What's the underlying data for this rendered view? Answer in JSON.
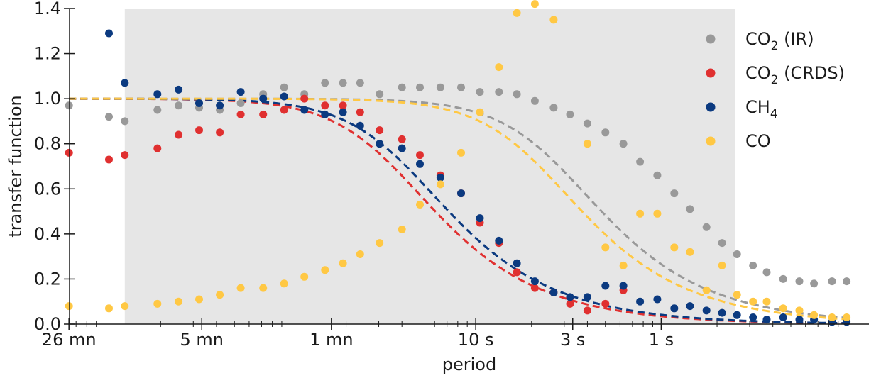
{
  "chart_data": {
    "type": "scatter",
    "xlabel": "period",
    "ylabel": "transfer function",
    "x_scale": "log (frequency)",
    "x_ticks": [
      {
        "label": "26 mn",
        "period_s": 1560
      },
      {
        "label": "5 mn",
        "period_s": 300
      },
      {
        "label": "1 mn",
        "period_s": 60
      },
      {
        "label": "10 s",
        "period_s": 10
      },
      {
        "label": "3 s",
        "period_s": 3
      },
      {
        "label": "1 s",
        "period_s": 1
      }
    ],
    "ylim": [
      0,
      1.4
    ],
    "y_ticks": [
      "0.0",
      "0.2",
      "0.4",
      "0.6",
      "0.8",
      "1.0",
      "1.2",
      "1.4"
    ],
    "shaded_region_period_s": [
      780,
      0.4
    ],
    "legend_position": "top-right",
    "colors": {
      "co2_ir": "#999999",
      "co2_crds": "#e03030",
      "ch4": "#0b3a80",
      "co": "#ffc844",
      "shade": "#e6e6e6"
    },
    "series": [
      {
        "key": "co2_ir",
        "name_main": "CO",
        "name_sub": "2",
        "name_rest": " (IR)",
        "color": "#999999",
        "fit_cutoff_s": 1.65,
        "points": [
          [
            1560,
            0.97
          ],
          [
            950,
            0.92
          ],
          [
            780,
            0.9
          ],
          [
            520,
            0.95
          ],
          [
            400,
            0.97
          ],
          [
            310,
            0.96
          ],
          [
            240,
            0.95
          ],
          [
            185,
            0.98
          ],
          [
            140,
            1.02
          ],
          [
            108,
            1.05
          ],
          [
            84,
            1.02
          ],
          [
            65,
            1.07
          ],
          [
            52,
            1.07
          ],
          [
            42,
            1.07
          ],
          [
            33,
            1.02
          ],
          [
            25,
            1.05
          ],
          [
            20,
            1.05
          ],
          [
            15.5,
            1.05
          ],
          [
            12,
            1.05
          ],
          [
            9.5,
            1.03
          ],
          [
            7.5,
            1.03
          ],
          [
            6,
            1.02
          ],
          [
            4.8,
            0.99
          ],
          [
            3.8,
            0.96
          ],
          [
            3.1,
            0.93
          ],
          [
            2.5,
            0.89
          ],
          [
            2.0,
            0.85
          ],
          [
            1.6,
            0.8
          ],
          [
            1.3,
            0.72
          ],
          [
            1.05,
            0.66
          ],
          [
            0.85,
            0.58
          ],
          [
            0.7,
            0.51
          ],
          [
            0.57,
            0.43
          ],
          [
            0.47,
            0.36
          ],
          [
            0.39,
            0.31
          ],
          [
            0.32,
            0.26
          ],
          [
            0.27,
            0.23
          ],
          [
            0.22,
            0.2
          ],
          [
            0.18,
            0.19
          ],
          [
            0.15,
            0.18
          ],
          [
            0.12,
            0.19
          ],
          [
            0.1,
            0.19
          ]
        ]
      },
      {
        "key": "co2_crds",
        "name_main": "CO",
        "name_sub": "2",
        "name_rest": " (CRDS)",
        "color": "#e03030",
        "fit_cutoff_s": 13,
        "points": [
          [
            1560,
            0.76
          ],
          [
            950,
            0.73
          ],
          [
            780,
            0.75
          ],
          [
            520,
            0.78
          ],
          [
            400,
            0.84
          ],
          [
            310,
            0.86
          ],
          [
            240,
            0.85
          ],
          [
            185,
            0.93
          ],
          [
            140,
            0.93
          ],
          [
            108,
            0.95
          ],
          [
            84,
            1.0
          ],
          [
            65,
            0.97
          ],
          [
            52,
            0.97
          ],
          [
            42,
            0.94
          ],
          [
            33,
            0.86
          ],
          [
            25,
            0.82
          ],
          [
            20,
            0.75
          ],
          [
            15.5,
            0.66
          ],
          [
            12,
            0.58
          ],
          [
            9.5,
            0.45
          ],
          [
            7.5,
            0.36
          ],
          [
            6,
            0.23
          ],
          [
            4.8,
            0.16
          ],
          [
            3.8,
            0.14
          ],
          [
            3.1,
            0.09
          ],
          [
            2.5,
            0.06
          ],
          [
            2.0,
            0.09
          ],
          [
            1.6,
            0.15
          ]
        ]
      },
      {
        "key": "ch4",
        "name_main": "CH",
        "name_sub": "4",
        "name_rest": "",
        "color": "#0b3a80",
        "fit_cutoff_s": 11,
        "points": [
          [
            950,
            1.29
          ],
          [
            780,
            1.07
          ],
          [
            520,
            1.02
          ],
          [
            400,
            1.04
          ],
          [
            310,
            0.98
          ],
          [
            240,
            0.97
          ],
          [
            185,
            1.03
          ],
          [
            140,
            1.0
          ],
          [
            108,
            1.01
          ],
          [
            84,
            0.95
          ],
          [
            65,
            0.93
          ],
          [
            52,
            0.94
          ],
          [
            42,
            0.88
          ],
          [
            33,
            0.8
          ],
          [
            25,
            0.78
          ],
          [
            20,
            0.71
          ],
          [
            15.5,
            0.65
          ],
          [
            12,
            0.58
          ],
          [
            9.5,
            0.47
          ],
          [
            7.5,
            0.37
          ],
          [
            6,
            0.27
          ],
          [
            4.8,
            0.19
          ],
          [
            3.8,
            0.14
          ],
          [
            3.1,
            0.12
          ],
          [
            2.5,
            0.12
          ],
          [
            2.0,
            0.17
          ],
          [
            1.6,
            0.17
          ],
          [
            1.3,
            0.1
          ],
          [
            1.05,
            0.11
          ],
          [
            0.85,
            0.07
          ],
          [
            0.7,
            0.08
          ],
          [
            0.57,
            0.06
          ],
          [
            0.47,
            0.05
          ],
          [
            0.39,
            0.04
          ],
          [
            0.32,
            0.03
          ],
          [
            0.27,
            0.02
          ],
          [
            0.22,
            0.03
          ],
          [
            0.18,
            0.02
          ],
          [
            0.15,
            0.02
          ],
          [
            0.12,
            0.01
          ],
          [
            0.1,
            0.01
          ]
        ]
      },
      {
        "key": "co",
        "name_main": "CO",
        "name_sub": "",
        "name_rest": "",
        "color": "#ffc844",
        "fit_cutoff_s": 2.1,
        "points": [
          [
            1560,
            0.08
          ],
          [
            950,
            0.07
          ],
          [
            780,
            0.08
          ],
          [
            520,
            0.09
          ],
          [
            400,
            0.1
          ],
          [
            310,
            0.11
          ],
          [
            240,
            0.13
          ],
          [
            185,
            0.16
          ],
          [
            140,
            0.16
          ],
          [
            108,
            0.18
          ],
          [
            84,
            0.21
          ],
          [
            65,
            0.24
          ],
          [
            52,
            0.27
          ],
          [
            42,
            0.31
          ],
          [
            33,
            0.36
          ],
          [
            25,
            0.42
          ],
          [
            20,
            0.53
          ],
          [
            15.5,
            0.62
          ],
          [
            12,
            0.76
          ],
          [
            9.5,
            0.94
          ],
          [
            7.5,
            1.14
          ],
          [
            6,
            1.38
          ],
          [
            4.8,
            1.42
          ],
          [
            3.8,
            1.35
          ],
          [
            2.5,
            0.8
          ],
          [
            2.0,
            0.34
          ],
          [
            1.6,
            0.26
          ],
          [
            1.3,
            0.49
          ],
          [
            1.05,
            0.49
          ],
          [
            0.85,
            0.34
          ],
          [
            0.7,
            0.32
          ],
          [
            0.57,
            0.15
          ],
          [
            0.47,
            0.26
          ],
          [
            0.39,
            0.13
          ],
          [
            0.32,
            0.1
          ],
          [
            0.27,
            0.1
          ],
          [
            0.22,
            0.07
          ],
          [
            0.18,
            0.06
          ],
          [
            0.15,
            0.04
          ],
          [
            0.12,
            0.03
          ],
          [
            0.1,
            0.03
          ]
        ]
      }
    ]
  }
}
